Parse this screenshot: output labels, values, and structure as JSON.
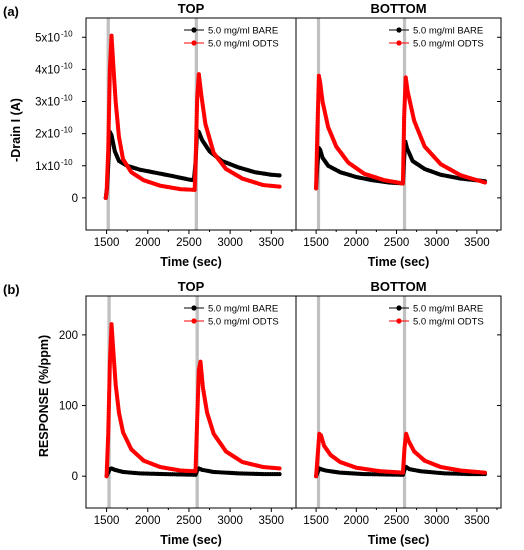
{
  "figure": {
    "panels": [
      {
        "label": "(a)",
        "ylabel": "-Drain I (A)",
        "chart_index": [
          0,
          1
        ]
      },
      {
        "label": "(b)",
        "ylabel": "RESPONSE (%/ppm)",
        "chart_index": [
          2,
          3
        ]
      }
    ]
  },
  "chart_data": [
    {
      "type": "scatter",
      "panel": "(a)",
      "title": "TOP",
      "xlabel": "Time (sec)",
      "ylabel": "-Drain I (A)",
      "xlim": [
        1250,
        3800
      ],
      "ylim": [
        -1e-10,
        5.6e-10
      ],
      "xticks": [
        1500,
        2000,
        2500,
        3000,
        3500
      ],
      "yticks": [
        0,
        1e-10,
        2e-10,
        3e-10,
        4e-10,
        5e-10
      ],
      "ytick_labels": [
        "0",
        "1x10",
        "2x10",
        "3x10",
        "4x10",
        "5x10"
      ],
      "ytick_exponent": "-10",
      "exposure_bands": [
        [
          1500,
          1540
        ],
        [
          2570,
          2610
        ]
      ],
      "legend_position": "top-right",
      "series": [
        {
          "name": "5.0 mg/ml BARE",
          "color": "#000000",
          "points": [
            [
              1490,
              0.0
            ],
            [
              1505,
              3e-11
            ],
            [
              1520,
              1e-10
            ],
            [
              1540,
              2.05e-10
            ],
            [
              1560,
              1.95e-10
            ],
            [
              1600,
              1.45e-10
            ],
            [
              1650,
              1.15e-10
            ],
            [
              1750,
              1e-10
            ],
            [
              1900,
              8.8e-11
            ],
            [
              2100,
              7.8e-11
            ],
            [
              2300,
              6.8e-11
            ],
            [
              2500,
              5.7e-11
            ],
            [
              2560,
              5.5e-11
            ],
            [
              2580,
              1.1e-10
            ],
            [
              2600,
              2.1e-10
            ],
            [
              2620,
              2.05e-10
            ],
            [
              2660,
              1.8e-10
            ],
            [
              2750,
              1.45e-10
            ],
            [
              2900,
              1.15e-10
            ],
            [
              3100,
              9.5e-11
            ],
            [
              3300,
              8e-11
            ],
            [
              3500,
              7.2e-11
            ],
            [
              3600,
              7e-11
            ]
          ]
        },
        {
          "name": "5.0 mg/ml ODTS",
          "color": "#ff0000",
          "points": [
            [
              1490,
              0.0
            ],
            [
              1500,
              1.5e-11
            ],
            [
              1520,
              1.5e-10
            ],
            [
              1540,
              4e-10
            ],
            [
              1560,
              5.05e-10
            ],
            [
              1580,
              4.2e-10
            ],
            [
              1610,
              3e-10
            ],
            [
              1650,
              1.9e-10
            ],
            [
              1700,
              1.2e-10
            ],
            [
              1800,
              8e-11
            ],
            [
              1950,
              5.5e-11
            ],
            [
              2150,
              3.8e-11
            ],
            [
              2400,
              2.7e-11
            ],
            [
              2570,
              2.5e-11
            ],
            [
              2585,
              1.5e-10
            ],
            [
              2600,
              3.1e-10
            ],
            [
              2620,
              3.85e-10
            ],
            [
              2650,
              3.2e-10
            ],
            [
              2700,
              2.3e-10
            ],
            [
              2800,
              1.4e-10
            ],
            [
              2950,
              9e-11
            ],
            [
              3150,
              6e-11
            ],
            [
              3400,
              4e-11
            ],
            [
              3600,
              3.5e-11
            ]
          ]
        }
      ]
    },
    {
      "type": "scatter",
      "panel": "(a)",
      "title": "BOTTOM",
      "xlabel": "Time (sec)",
      "xlim": [
        1250,
        3800
      ],
      "ylim": [
        -1e-10,
        5.6e-10
      ],
      "xticks": [
        1500,
        2000,
        2500,
        3000,
        3500
      ],
      "exposure_bands": [
        [
          1510,
          1550
        ],
        [
          2580,
          2620
        ]
      ],
      "legend_position": "top-right",
      "series": [
        {
          "name": "5.0 mg/ml BARE",
          "color": "#000000",
          "points": [
            [
              1500,
              3e-11
            ],
            [
              1515,
              1e-10
            ],
            [
              1535,
              1.55e-10
            ],
            [
              1550,
              1.5e-10
            ],
            [
              1580,
              1.25e-10
            ],
            [
              1650,
              1e-10
            ],
            [
              1800,
              8e-11
            ],
            [
              2000,
              6.5e-11
            ],
            [
              2200,
              5.5e-11
            ],
            [
              2400,
              4.8e-11
            ],
            [
              2580,
              4.5e-11
            ],
            [
              2595,
              1.2e-10
            ],
            [
              2610,
              1.75e-10
            ],
            [
              2630,
              1.55e-10
            ],
            [
              2700,
              1.15e-10
            ],
            [
              2850,
              9e-11
            ],
            [
              3050,
              7.2e-11
            ],
            [
              3300,
              6e-11
            ],
            [
              3600,
              5.2e-11
            ]
          ]
        },
        {
          "name": "5.0 mg/ml ODTS",
          "color": "#ff0000",
          "points": [
            [
              1500,
              3e-11
            ],
            [
              1515,
              2e-10
            ],
            [
              1535,
              3.8e-10
            ],
            [
              1550,
              3.6e-10
            ],
            [
              1580,
              3e-10
            ],
            [
              1650,
              2.2e-10
            ],
            [
              1750,
              1.6e-10
            ],
            [
              1900,
              1.1e-10
            ],
            [
              2100,
              7.5e-11
            ],
            [
              2350,
              5.5e-11
            ],
            [
              2580,
              4.5e-11
            ],
            [
              2595,
              2.5e-10
            ],
            [
              2615,
              3.75e-10
            ],
            [
              2640,
              3.3e-10
            ],
            [
              2720,
              2.4e-10
            ],
            [
              2850,
              1.6e-10
            ],
            [
              3050,
              1.05e-10
            ],
            [
              3300,
              7e-11
            ],
            [
              3600,
              4.8e-11
            ]
          ]
        }
      ]
    },
    {
      "type": "scatter",
      "panel": "(b)",
      "title": "TOP",
      "xlabel": "Time (sec)",
      "ylabel": "RESPONSE (%/ppm)",
      "xlim": [
        1250,
        3800
      ],
      "ylim": [
        -45,
        255
      ],
      "xticks": [
        1500,
        2000,
        2500,
        3000,
        3500
      ],
      "yticks": [
        0,
        100,
        200
      ],
      "exposure_bands": [
        [
          1510,
          1550
        ],
        [
          2580,
          2620
        ]
      ],
      "legend_position": "top-right",
      "series": [
        {
          "name": "5.0 mg/ml BARE",
          "color": "#000000",
          "points": [
            [
              1500,
              0
            ],
            [
              1520,
              5
            ],
            [
              1540,
              10
            ],
            [
              1560,
              11
            ],
            [
              1600,
              9
            ],
            [
              1700,
              6
            ],
            [
              1900,
              4
            ],
            [
              2200,
              3
            ],
            [
              2580,
              2
            ],
            [
              2600,
              8
            ],
            [
              2620,
              11
            ],
            [
              2660,
              9
            ],
            [
              2800,
              6
            ],
            [
              3100,
              4
            ],
            [
              3400,
              3
            ],
            [
              3600,
              3
            ]
          ]
        },
        {
          "name": "5.0 mg/ml ODTS",
          "color": "#ff0000",
          "points": [
            [
              1500,
              0
            ],
            [
              1520,
              60
            ],
            [
              1540,
              160
            ],
            [
              1560,
              215
            ],
            [
              1580,
              180
            ],
            [
              1610,
              130
            ],
            [
              1650,
              90
            ],
            [
              1700,
              62
            ],
            [
              1800,
              38
            ],
            [
              1950,
              22
            ],
            [
              2150,
              13
            ],
            [
              2400,
              8
            ],
            [
              2580,
              7
            ],
            [
              2600,
              80
            ],
            [
              2620,
              150
            ],
            [
              2640,
              162
            ],
            [
              2670,
              125
            ],
            [
              2720,
              90
            ],
            [
              2800,
              60
            ],
            [
              2950,
              35
            ],
            [
              3150,
              20
            ],
            [
              3400,
              13
            ],
            [
              3600,
              11
            ]
          ]
        }
      ]
    },
    {
      "type": "scatter",
      "panel": "(b)",
      "title": "BOTTOM",
      "xlabel": "Time (sec)",
      "xlim": [
        1250,
        3800
      ],
      "ylim": [
        -45,
        255
      ],
      "xticks": [
        1500,
        2000,
        2500,
        3000,
        3500
      ],
      "exposure_bands": [
        [
          1510,
          1550
        ],
        [
          2580,
          2620
        ]
      ],
      "legend_position": "top-right",
      "series": [
        {
          "name": "5.0 mg/ml BARE",
          "color": "#000000",
          "points": [
            [
              1500,
              0
            ],
            [
              1520,
              6
            ],
            [
              1540,
              11
            ],
            [
              1560,
              10
            ],
            [
              1620,
              8
            ],
            [
              1800,
              5
            ],
            [
              2100,
              3
            ],
            [
              2580,
              2
            ],
            [
              2600,
              9
            ],
            [
              2620,
              13
            ],
            [
              2660,
              10
            ],
            [
              2800,
              7
            ],
            [
              3100,
              4
            ],
            [
              3400,
              3
            ],
            [
              3600,
              3
            ]
          ]
        },
        {
          "name": "5.0 mg/ml ODTS",
          "color": "#ff0000",
          "points": [
            [
              1500,
              0
            ],
            [
              1520,
              30
            ],
            [
              1540,
              60
            ],
            [
              1560,
              58
            ],
            [
              1600,
              43
            ],
            [
              1680,
              30
            ],
            [
              1800,
              20
            ],
            [
              2000,
              12
            ],
            [
              2300,
              7
            ],
            [
              2580,
              5
            ],
            [
              2600,
              40
            ],
            [
              2620,
              60
            ],
            [
              2650,
              50
            ],
            [
              2720,
              35
            ],
            [
              2850,
              22
            ],
            [
              3050,
              13
            ],
            [
              3300,
              8
            ],
            [
              3600,
              5
            ]
          ]
        }
      ]
    }
  ]
}
